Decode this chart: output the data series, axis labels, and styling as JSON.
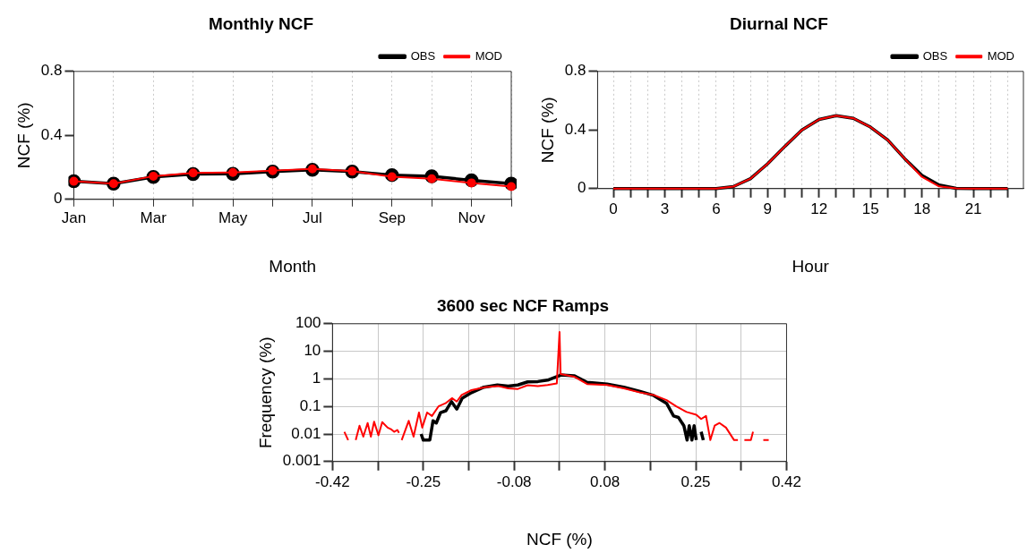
{
  "chart_data": [
    {
      "type": "line",
      "title": "Monthly NCF",
      "xlabel": "Month",
      "ylabel": "NCF (%)",
      "categories": [
        "Jan",
        null,
        "Mar",
        null,
        "May",
        null,
        "Jul",
        null,
        "Sep",
        null,
        "Nov",
        null
      ],
      "ylim": [
        0,
        0.8
      ],
      "yticks": [
        0,
        0.4,
        0.8
      ],
      "grid": "x",
      "legend": "top right",
      "marker": "circle",
      "line_style": "solid",
      "series": [
        {
          "name": "OBS",
          "color": "#000000",
          "values": [
            0.113,
            0.098,
            0.14,
            0.158,
            0.16,
            0.174,
            0.185,
            0.174,
            0.152,
            0.144,
            0.119,
            0.098
          ]
        },
        {
          "name": "MOD",
          "color": "#ff0000",
          "values": [
            0.113,
            0.098,
            0.145,
            0.165,
            0.168,
            0.18,
            0.19,
            0.176,
            0.142,
            0.129,
            0.103,
            0.08
          ]
        }
      ]
    },
    {
      "type": "line",
      "title": "Diurnal NCF",
      "xlabel": "Hour",
      "ylabel": "NCF (%)",
      "x": [
        0,
        1,
        2,
        3,
        4,
        5,
        6,
        7,
        8,
        9,
        10,
        11,
        12,
        13,
        14,
        15,
        16,
        17,
        18,
        19,
        20,
        21,
        22,
        23
      ],
      "xlim": [
        -0.92,
        23.92
      ],
      "xticks": [
        0,
        {
          "value": 1,
          "label": null
        },
        {
          "value": 2,
          "label": null
        },
        3,
        {
          "value": 4,
          "label": null
        },
        {
          "value": 5,
          "label": null
        },
        6,
        {
          "value": 7,
          "label": null
        },
        {
          "value": 8,
          "label": null
        },
        9,
        {
          "value": 10,
          "label": null
        },
        {
          "value": 11,
          "label": null
        },
        12,
        {
          "value": 13,
          "label": null
        },
        {
          "value": 14,
          "label": null
        },
        15,
        {
          "value": 16,
          "label": null
        },
        {
          "value": 17,
          "label": null
        },
        18,
        {
          "value": 19,
          "label": null
        },
        {
          "value": 20,
          "label": null
        },
        21,
        {
          "value": 22,
          "label": null
        },
        {
          "value": 23,
          "label": null
        }
      ],
      "ylim": [
        0,
        0.8
      ],
      "yticks": [
        0,
        0.4,
        0.8
      ],
      "grid": "x",
      "legend": "top right",
      "line_style": "solid",
      "series": [
        {
          "name": "OBS",
          "color": "#000000",
          "values": [
            0,
            0,
            0,
            0,
            0,
            0,
            0,
            0.014,
            0.068,
            0.17,
            0.288,
            0.4,
            0.472,
            0.498,
            0.48,
            0.42,
            0.332,
            0.204,
            0.09,
            0.025,
            0.002,
            0,
            0,
            0
          ]
        },
        {
          "name": "MOD",
          "color": "#ff0000",
          "values": [
            0,
            0,
            0,
            0,
            0,
            0,
            0,
            0.014,
            0.068,
            0.17,
            0.288,
            0.4,
            0.472,
            0.498,
            0.48,
            0.42,
            0.332,
            0.204,
            0.08,
            0.015,
            0.002,
            0,
            0,
            0
          ]
        }
      ]
    },
    {
      "type": "line",
      "title": "3600 sec NCF Ramps",
      "xlabel": "NCF (%)",
      "ylabel": "Frequency (%)",
      "log": "y",
      "xlim": [
        -0.42,
        0.42
      ],
      "xticks": [
        -0.42,
        {
          "value": -0.336,
          "label": null
        },
        {
          "value": -0.252,
          "label": "-0.25"
        },
        {
          "value": -0.168,
          "label": null
        },
        {
          "value": -0.084,
          "label": "-0.08"
        },
        {
          "value": 0,
          "label": null
        },
        {
          "value": 0.084,
          "label": "0.08"
        },
        {
          "value": 0.168,
          "label": null
        },
        {
          "value": 0.252,
          "label": "0.25"
        },
        {
          "value": 0.336,
          "label": null
        },
        0.42
      ],
      "ylim": [
        0.001,
        100
      ],
      "yticks": [
        0.001,
        0.01,
        0.1,
        1,
        10,
        100
      ],
      "grid": true,
      "line_style": "solid",
      "series": [
        {
          "color": "#000000",
          "x": [
            -0.256,
            -0.252,
            -0.24,
            -0.234,
            -0.228,
            -0.22,
            -0.21,
            -0.2,
            -0.19,
            -0.18,
            -0.165,
            -0.14,
            -0.115,
            -0.095,
            -0.077,
            -0.059,
            -0.04,
            -0.022,
            -0.005,
            0,
            0.002,
            0.027,
            0.051,
            0.088,
            0.119,
            0.149,
            0.174,
            0.198,
            0.211,
            0.22,
            0.23,
            0.236,
            0.24,
            0.245,
            0.249,
            0.253,
            0.258,
            0.262,
            0.266
          ],
          "values": [
            0.01,
            0.006,
            0.006,
            0.03,
            0.025,
            0.06,
            0.07,
            0.15,
            0.08,
            0.2,
            0.3,
            0.5,
            0.6,
            0.55,
            0.6,
            0.78,
            0.8,
            0.9,
            1.2,
            1.3,
            1.4,
            1.3,
            0.75,
            0.65,
            0.5,
            0.35,
            0.25,
            0.13,
            0.045,
            0.04,
            0.02,
            0.006,
            0.02,
            0.006,
            0.02,
            0.006,
            null,
            0.012,
            0.006
          ]
        },
        {
          "color": "#ff0000",
          "x": [
            -0.398,
            -0.391,
            -0.384,
            -0.377,
            -0.37,
            -0.363,
            -0.355,
            -0.349,
            -0.343,
            -0.335,
            -0.328,
            -0.318,
            -0.312,
            -0.306,
            -0.3,
            -0.297,
            -0.294,
            -0.292,
            -0.279,
            -0.27,
            -0.26,
            -0.254,
            -0.245,
            -0.236,
            -0.224,
            -0.211,
            -0.199,
            -0.19,
            -0.181,
            -0.163,
            -0.138,
            -0.114,
            -0.095,
            -0.077,
            -0.059,
            -0.04,
            -0.022,
            -0.005,
            0,
            0.002,
            0.027,
            0.051,
            0.088,
            0.119,
            0.149,
            0.174,
            0.198,
            0.216,
            0.235,
            0.253,
            0.262,
            0.271,
            0.279,
            0.287,
            0.296,
            0.308,
            0.323,
            0.33,
            0.336,
            0.342,
            0.354,
            0.358,
            0.37,
            0.377,
            0.387
          ],
          "values": [
            0.012,
            0.006,
            null,
            0.006,
            0.02,
            0.008,
            0.025,
            0.008,
            0.028,
            0.009,
            0.027,
            0.017,
            0.015,
            0.012,
            0.014,
            0.011,
            null,
            0.006,
            0.03,
            0.008,
            0.06,
            0.017,
            0.06,
            0.045,
            0.1,
            0.13,
            0.2,
            0.15,
            0.26,
            0.39,
            0.5,
            0.55,
            0.45,
            0.43,
            0.59,
            0.55,
            0.6,
            0.68,
            50,
            1.5,
            1.2,
            0.65,
            0.6,
            0.45,
            0.32,
            0.26,
            0.17,
            0.1,
            0.063,
            0.05,
            0.035,
            0.045,
            0.006,
            0.02,
            0.025,
            0.017,
            0.006,
            0.006,
            null,
            0.006,
            0.006,
            0.012,
            null,
            0.006,
            0.006
          ]
        }
      ]
    }
  ]
}
